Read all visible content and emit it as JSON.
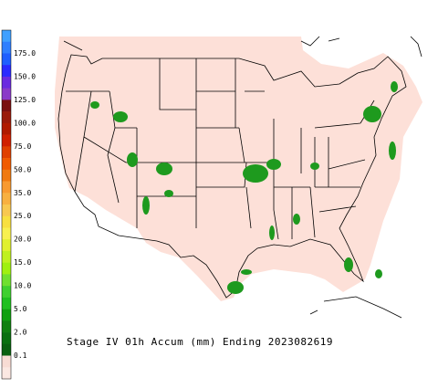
{
  "title": "Stage IV 01h Accum (mm) Ending 2023082619",
  "legend": {
    "labels": [
      "175.0",
      "150.0",
      "125.0",
      "100.0",
      "75.0",
      "50.0",
      "35.0",
      "25.0",
      "20.0",
      "15.0",
      "10.0",
      "5.0",
      "2.0",
      "0.1"
    ],
    "colors": [
      "#3fa0ff",
      "#2f7fff",
      "#1f5fff",
      "#2a2aff",
      "#6a2ae0",
      "#8a3ac8",
      "#7a1010",
      "#9a1a0a",
      "#b01a00",
      "#d02000",
      "#e04000",
      "#f05a00",
      "#f07a10",
      "#f89a30",
      "#f8b040",
      "#f8c850",
      "#f8e040",
      "#f8f050",
      "#e0f030",
      "#c0f020",
      "#a0f010",
      "#70e030",
      "#40d030",
      "#20c020",
      "#10a010",
      "#108010",
      "#0a7010",
      "#0a6010",
      "#f8dcd4",
      "#fbe8e2"
    ]
  }
}
